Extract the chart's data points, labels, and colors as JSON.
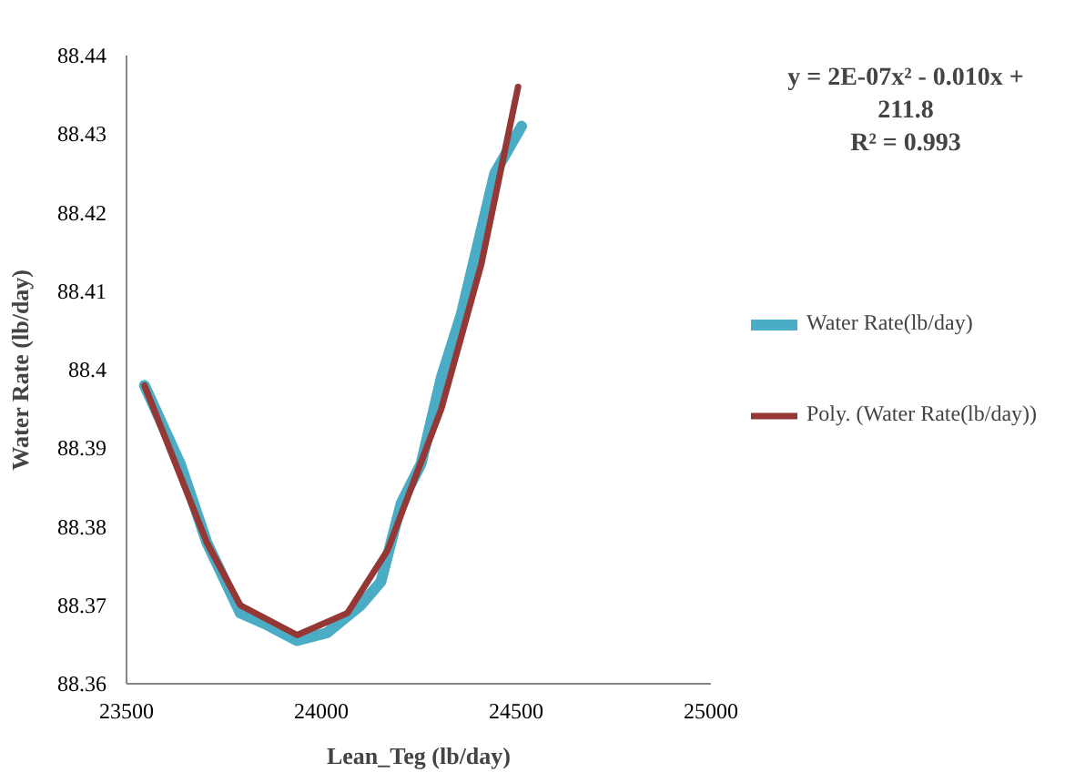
{
  "chart_data": {
    "type": "line",
    "xlabel": "Lean_Teg (lb/day)",
    "ylabel": "Water Rate (lb/day)",
    "xlim": [
      23500,
      25000
    ],
    "xticks": [
      23500,
      24000,
      24500,
      25000
    ],
    "ylim": [
      88.36,
      88.44
    ],
    "yticks": [
      88.36,
      88.37,
      88.38,
      88.39,
      {
        "value": 88.4,
        "label": "88.4"
      },
      88.41,
      88.42,
      88.43,
      88.44
    ],
    "grid": false,
    "legend": "right",
    "marker": "none",
    "line_style": "solid",
    "annotations": [
      "y = 2E-07x² - 0.010x +\n211.8\nR² = 0.993"
    ],
    "series": [
      {
        "name": "Water Rate(lb/day)",
        "color": "#4bacc6",
        "x": [
          23546,
          23638,
          23706,
          23792,
          23861,
          23938,
          24015,
          24101,
          24153,
          24205,
          24256,
          24308,
          24359,
          24445,
          24514
        ],
        "values": [
          88.398,
          88.388,
          88.378,
          88.369,
          88.3675,
          88.3655,
          88.3665,
          88.37,
          88.373,
          88.383,
          88.388,
          88.399,
          88.407,
          88.425,
          88.431
        ]
      },
      {
        "name": "Poly. (Water Rate(lb/day))",
        "color": "#953735",
        "x": [
          23546,
          23706,
          23792,
          23938,
          24067,
          24170,
          24308,
          24411,
          24505
        ],
        "values": [
          88.398,
          88.378,
          88.37,
          88.3662,
          88.369,
          88.377,
          88.395,
          88.4135,
          88.436
        ]
      }
    ]
  }
}
